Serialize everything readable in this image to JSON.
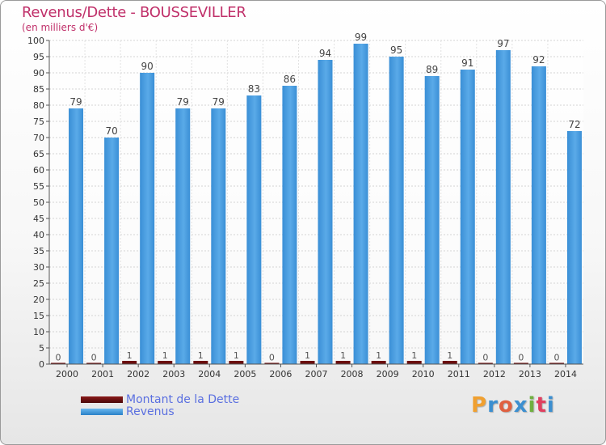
{
  "title": "Revenus/Dette - BOUSSEVILLER",
  "unit_label": "(en milliers d'€)",
  "colors": {
    "dette": "#6b0d0d",
    "revenus": "#4a9fe0",
    "revenus_dark": "#2a6fb0",
    "title": "#c0306a",
    "legend_text": "#5a6fe0"
  },
  "chart_data": {
    "type": "bar",
    "categories": [
      "2000",
      "2001",
      "2002",
      "2003",
      "2004",
      "2005",
      "2006",
      "2007",
      "2008",
      "2009",
      "2010",
      "2011",
      "2012",
      "2013",
      "2014"
    ],
    "series": [
      {
        "name": "Montant de la Dette",
        "values": [
          0,
          0,
          1,
          1,
          1,
          1,
          0,
          1,
          1,
          1,
          1,
          1,
          0,
          0,
          0
        ]
      },
      {
        "name": "Revenus",
        "values": [
          79,
          70,
          90,
          79,
          79,
          83,
          86,
          94,
          99,
          95,
          89,
          91,
          97,
          92,
          72
        ]
      }
    ],
    "ylim": [
      0,
      100
    ],
    "yticks": [
      0,
      5,
      10,
      15,
      20,
      25,
      30,
      35,
      40,
      45,
      50,
      55,
      60,
      65,
      70,
      75,
      80,
      85,
      90,
      95,
      100
    ],
    "grid": true,
    "title": "Revenus/Dette - BOUSSEVILLER",
    "xlabel": "",
    "ylabel": "(en milliers d'€)"
  },
  "legend": {
    "items": [
      {
        "label": "Montant de la Dette"
      },
      {
        "label": "Revenus"
      }
    ]
  },
  "logo": {
    "text": "Proxiti",
    "letter_colors": [
      "#f0a030",
      "#3c8fd0",
      "#e06040",
      "#3c8fd0",
      "#70b040",
      "#e04060",
      "#3c8fd0"
    ]
  }
}
